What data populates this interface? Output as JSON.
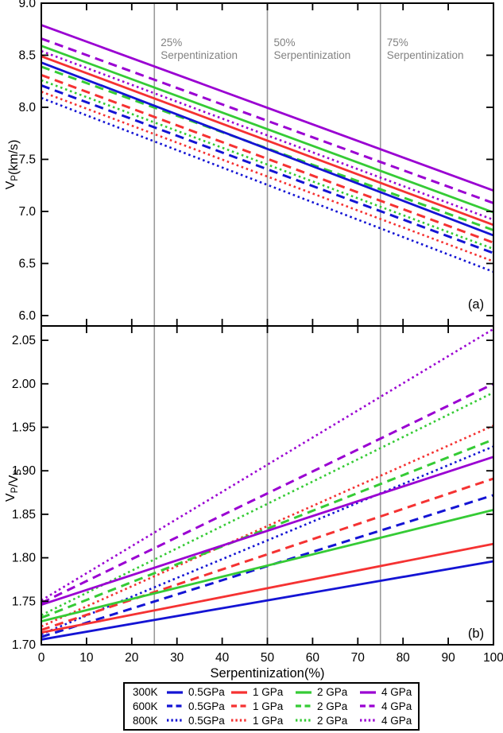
{
  "figure": {
    "xlabel": "Serpentinization(%)",
    "panel_a_label": "(a)",
    "panel_b_label": "(b)"
  },
  "colors": {
    "blue": "#1414d4",
    "red": "#f53232",
    "green": "#35cb35",
    "purple": "#9a00d2",
    "gridline_gray": "#9a9a9a",
    "annotation_gray": "#828282",
    "axis_black": "#000000"
  },
  "chart_data": [
    {
      "id": "a",
      "type": "line",
      "panel_label": "(a)",
      "ylabel_parts": [
        {
          "t": "V"
        },
        {
          "t": "P",
          "sub": true
        },
        {
          "t": "(km/s)"
        }
      ],
      "xlim": [
        0,
        100
      ],
      "xticks": [
        0,
        10,
        20,
        30,
        40,
        50,
        60,
        70,
        80,
        90,
        100
      ],
      "show_xtick_labels": false,
      "ylim": [
        5.9,
        9.0
      ],
      "yticks": [
        6.0,
        6.5,
        7.0,
        7.5,
        8.0,
        8.5,
        9.0
      ],
      "ytick_decimals": 1,
      "x": [
        0,
        100
      ],
      "vlines": [
        25,
        50,
        75
      ],
      "annotations": [
        {
          "x": 25,
          "lines": [
            "25%",
            "Serpentinization"
          ]
        },
        {
          "x": 50,
          "lines": [
            "50%",
            "Serpentinization"
          ]
        },
        {
          "x": 75,
          "lines": [
            "75%",
            "Serpentinization"
          ]
        }
      ],
      "series": [
        {
          "temperature": "800K",
          "pressure": "0.5GPa",
          "color": "blue",
          "style": "dotted",
          "values": [
            8.09,
            6.42
          ]
        },
        {
          "temperature": "800K",
          "pressure": "1 GPa",
          "color": "red",
          "style": "dotted",
          "values": [
            8.15,
            6.52
          ]
        },
        {
          "temperature": "600K",
          "pressure": "0.5GPa",
          "color": "blue",
          "style": "dashed",
          "values": [
            8.21,
            6.6
          ]
        },
        {
          "temperature": "800K",
          "pressure": "2 GPa",
          "color": "green",
          "style": "dotted",
          "values": [
            8.26,
            6.64
          ]
        },
        {
          "temperature": "600K",
          "pressure": "1 GPa",
          "color": "red",
          "style": "dashed",
          "values": [
            8.31,
            6.7
          ]
        },
        {
          "temperature": "600K",
          "pressure": "2 GPa",
          "color": "green",
          "style": "dashed",
          "values": [
            8.39,
            6.82
          ]
        },
        {
          "temperature": "800K",
          "pressure": "4 GPa",
          "color": "purple",
          "style": "dotted",
          "values": [
            8.54,
            6.92
          ]
        },
        {
          "temperature": "300K",
          "pressure": "0.5GPa",
          "color": "blue",
          "style": "solid",
          "values": [
            8.43,
            6.77
          ]
        },
        {
          "temperature": "300K",
          "pressure": "1 GPa",
          "color": "red",
          "style": "solid",
          "values": [
            8.49,
            6.87
          ]
        },
        {
          "temperature": "300K",
          "pressure": "2 GPa",
          "color": "green",
          "style": "solid",
          "values": [
            8.59,
            6.99
          ]
        },
        {
          "temperature": "600K",
          "pressure": "4 GPa",
          "color": "purple",
          "style": "dashed",
          "values": [
            8.66,
            7.08
          ]
        },
        {
          "temperature": "300K",
          "pressure": "4 GPa",
          "color": "purple",
          "style": "solid",
          "values": [
            8.79,
            7.2
          ]
        }
      ]
    },
    {
      "id": "b",
      "type": "line",
      "panel_label": "(b)",
      "ylabel_parts": [
        {
          "t": "V"
        },
        {
          "t": "P",
          "sub": true
        },
        {
          "t": "/V"
        },
        {
          "t": "S",
          "sub": true
        }
      ],
      "xlim": [
        0,
        100
      ],
      "xticks": [
        0,
        10,
        20,
        30,
        40,
        50,
        60,
        70,
        80,
        90,
        100
      ],
      "show_xtick_labels": true,
      "ylim": [
        1.7,
        2.0665
      ],
      "yticks": [
        1.7,
        1.75,
        1.8,
        1.85,
        1.9,
        1.95,
        2.0,
        2.05
      ],
      "ytick_decimals": 2,
      "x": [
        0,
        100
      ],
      "vlines": [
        25,
        50,
        75
      ],
      "annotations": [],
      "series": [
        {
          "temperature": "800K",
          "pressure": "0.5GPa",
          "color": "blue",
          "style": "dotted",
          "values": [
            1.712,
            1.928
          ]
        },
        {
          "temperature": "800K",
          "pressure": "1 GPa",
          "color": "red",
          "style": "dotted",
          "values": [
            1.721,
            1.952
          ]
        },
        {
          "temperature": "800K",
          "pressure": "2 GPa",
          "color": "green",
          "style": "dotted",
          "values": [
            1.734,
            1.99
          ]
        },
        {
          "temperature": "800K",
          "pressure": "4 GPa",
          "color": "purple",
          "style": "dotted",
          "values": [
            1.751,
            2.063
          ]
        },
        {
          "temperature": "600K",
          "pressure": "0.5GPa",
          "color": "blue",
          "style": "dashed",
          "values": [
            1.709,
            1.872
          ]
        },
        {
          "temperature": "600K",
          "pressure": "1 GPa",
          "color": "red",
          "style": "dashed",
          "values": [
            1.717,
            1.891
          ]
        },
        {
          "temperature": "600K",
          "pressure": "2 GPa",
          "color": "green",
          "style": "dashed",
          "values": [
            1.731,
            1.936
          ]
        },
        {
          "temperature": "600K",
          "pressure": "4 GPa",
          "color": "purple",
          "style": "dashed",
          "values": [
            1.748,
            2.0
          ]
        },
        {
          "temperature": "300K",
          "pressure": "0.5GPa",
          "color": "blue",
          "style": "solid",
          "values": [
            1.706,
            1.796
          ]
        },
        {
          "temperature": "300K",
          "pressure": "1 GPa",
          "color": "red",
          "style": "solid",
          "values": [
            1.714,
            1.816
          ]
        },
        {
          "temperature": "300K",
          "pressure": "2 GPa",
          "color": "green",
          "style": "solid",
          "values": [
            1.727,
            1.855
          ]
        },
        {
          "temperature": "300K",
          "pressure": "4 GPa",
          "color": "purple",
          "style": "solid",
          "values": [
            1.746,
            1.916
          ]
        }
      ]
    }
  ],
  "legend": {
    "rows": [
      {
        "temperature": "300K",
        "style": "solid",
        "entries": [
          {
            "color": "blue",
            "label": "0.5GPa"
          },
          {
            "color": "red",
            "label": "1 GPa"
          },
          {
            "color": "green",
            "label": "2 GPa"
          },
          {
            "color": "purple",
            "label": "4 GPa"
          }
        ]
      },
      {
        "temperature": "600K",
        "style": "dashed",
        "entries": [
          {
            "color": "blue",
            "label": "0.5GPa"
          },
          {
            "color": "red",
            "label": "1 GPa"
          },
          {
            "color": "green",
            "label": "2 GPa"
          },
          {
            "color": "purple",
            "label": "4 GPa"
          }
        ]
      },
      {
        "temperature": "800K",
        "style": "dotted",
        "entries": [
          {
            "color": "blue",
            "label": "0.5GPa"
          },
          {
            "color": "red",
            "label": "1 GPa"
          },
          {
            "color": "green",
            "label": "2 GPa"
          },
          {
            "color": "purple",
            "label": "4 GPa"
          }
        ]
      }
    ]
  }
}
